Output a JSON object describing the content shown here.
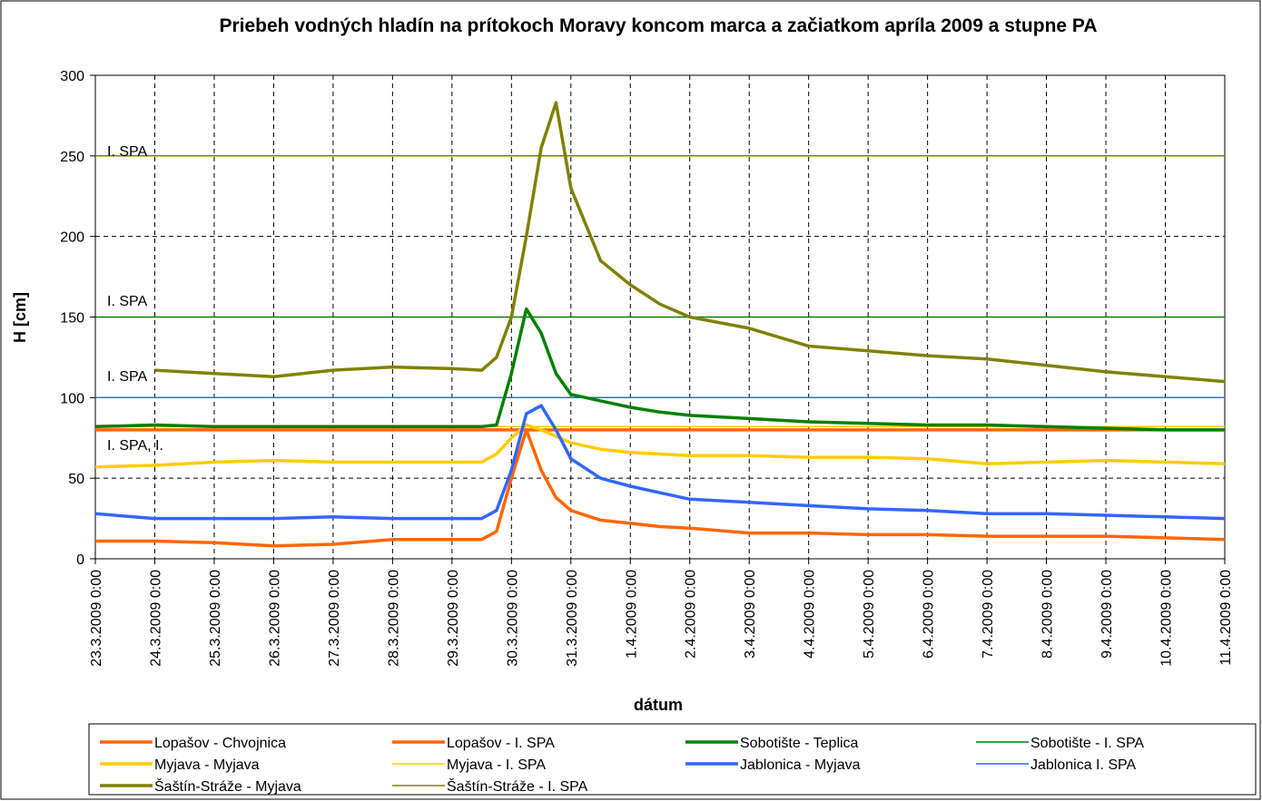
{
  "chart_data": {
    "type": "line",
    "title": "Priebeh vodných hladín na prítokoch Moravy koncom marca a začiatkom apríla 2009 a stupne PA",
    "xlabel": "dátum",
    "ylabel": "H [cm]",
    "x": [
      "23.3.2009 0:00",
      "24.3.2009 0:00",
      "25.3.2009 0:00",
      "26.3.2009 0:00",
      "27.3.2009 0:00",
      "28.3.2009 0:00",
      "29.3.2009 0:00",
      "29.3.2009 12:00",
      "29.3.2009 18:00",
      "30.3.2009 0:00",
      "30.3.2009 6:00",
      "30.3.2009 12:00",
      "30.3.2009 18:00",
      "31.3.2009 0:00",
      "31.3.2009 12:00",
      "1.4.2009 0:00",
      "1.4.2009 12:00",
      "2.4.2009 0:00",
      "3.4.2009 0:00",
      "4.4.2009 0:00",
      "5.4.2009 0:00",
      "6.4.2009 0:00",
      "7.4.2009 0:00",
      "8.4.2009 0:00",
      "9.4.2009 0:00",
      "10.4.2009 0:00",
      "11.4.2009 0:00"
    ],
    "series": [
      {
        "name": "Lopašov - Chvojnica",
        "color": "#ff6600",
        "line_width": 3.5,
        "values": [
          11,
          11,
          10,
          8,
          9,
          12,
          12,
          12,
          17,
          50,
          80,
          55,
          38,
          30,
          24,
          22,
          20,
          19,
          16,
          16,
          15,
          15,
          14,
          14,
          14,
          13,
          12
        ]
      },
      {
        "name": "Lopašov - I. SPA",
        "color": "#ff6600",
        "line_width": 3.5,
        "values": [
          80,
          80,
          80,
          80,
          80,
          80,
          80,
          80,
          80,
          80,
          80,
          80,
          80,
          80,
          80,
          80,
          80,
          80,
          80,
          80,
          80,
          80,
          80,
          80,
          80,
          80,
          80
        ]
      },
      {
        "name": "Sobotište - Teplica",
        "color": "#008000",
        "line_width": 3.5,
        "values": [
          82,
          83,
          82,
          82,
          82,
          82,
          82,
          82,
          83,
          115,
          155,
          140,
          115,
          102,
          98,
          94,
          91,
          89,
          87,
          85,
          84,
          83,
          83,
          82,
          81,
          80,
          80
        ]
      },
      {
        "name": "Sobotište - I. SPA",
        "color": "#008000",
        "line_width": 1.5,
        "values": [
          150,
          150,
          150,
          150,
          150,
          150,
          150,
          150,
          150,
          150,
          150,
          150,
          150,
          150,
          150,
          150,
          150,
          150,
          150,
          150,
          150,
          150,
          150,
          150,
          150,
          150,
          150
        ]
      },
      {
        "name": "Myjava - Myjava",
        "color": "#ffcc00",
        "line_width": 3.5,
        "values": [
          57,
          58,
          60,
          61,
          60,
          60,
          60,
          60,
          65,
          75,
          83,
          80,
          76,
          72,
          68,
          66,
          65,
          64,
          64,
          63,
          63,
          62,
          59,
          60,
          61,
          60,
          59
        ]
      },
      {
        "name": "Myjava - I. SPA",
        "color": "#ffcc00",
        "line_width": 1.5,
        "values": [
          82,
          82,
          82,
          82,
          82,
          82,
          82,
          82,
          82,
          82,
          82,
          82,
          82,
          82,
          82,
          82,
          82,
          82,
          82,
          82,
          82,
          82,
          82,
          82,
          82,
          82,
          82
        ]
      },
      {
        "name": "Jablonica - Myjava",
        "color": "#3366ff",
        "line_width": 3.5,
        "values": [
          28,
          25,
          25,
          25,
          26,
          25,
          25,
          25,
          30,
          55,
          90,
          95,
          80,
          62,
          50,
          45,
          41,
          37,
          35,
          33,
          31,
          30,
          28,
          28,
          27,
          26,
          25
        ]
      },
      {
        "name": "Jablonica I. SPA",
        "color": "#3366ff",
        "line_width": 1.5,
        "values": [
          100,
          100,
          100,
          100,
          100,
          100,
          100,
          100,
          100,
          100,
          100,
          100,
          100,
          100,
          100,
          100,
          100,
          100,
          100,
          100,
          100,
          100,
          100,
          100,
          100,
          100,
          100
        ]
      },
      {
        "name": "Šaštín-Stráže - Myjava",
        "color": "#808000",
        "line_width": 3.5,
        "values": [
          null,
          117,
          115,
          113,
          117,
          119,
          118,
          117,
          125,
          150,
          200,
          255,
          283,
          230,
          185,
          170,
          158,
          150,
          143,
          132,
          129,
          126,
          124,
          120,
          116,
          113,
          110
        ]
      },
      {
        "name": "Šaštín-Stráže - I. SPA",
        "color": "#808000",
        "line_width": 1.5,
        "values": [
          250,
          250,
          250,
          250,
          250,
          250,
          250,
          250,
          250,
          250,
          250,
          250,
          250,
          250,
          250,
          250,
          250,
          250,
          250,
          250,
          250,
          250,
          250,
          250,
          250,
          250,
          250
        ]
      }
    ],
    "annotations": [
      "I. SPA",
      "I. SPA",
      "I. SPA",
      "I. SPA, I."
    ],
    "xlim": [
      "23.3.2009 0:00",
      "11.4.2009 0:00"
    ],
    "xticks": [
      "23.3.2009 0:00",
      "24.3.2009 0:00",
      "25.3.2009 0:00",
      "26.3.2009 0:00",
      "27.3.2009 0:00",
      "28.3.2009 0:00",
      "29.3.2009 0:00",
      "30.3.2009 0:00",
      "31.3.2009 0:00",
      "1.4.2009 0:00",
      "2.4.2009 0:00",
      "3.4.2009 0:00",
      "4.4.2009 0:00",
      "5.4.2009 0:00",
      "6.4.2009 0:00",
      "7.4.2009 0:00",
      "8.4.2009 0:00",
      "9.4.2009 0:00",
      "10.4.2009 0:00",
      "11.4.2009 0:00"
    ],
    "ylim": [
      0,
      300
    ],
    "yticks": [
      0,
      50,
      100,
      150,
      200,
      250,
      300
    ],
    "grid": true
  }
}
